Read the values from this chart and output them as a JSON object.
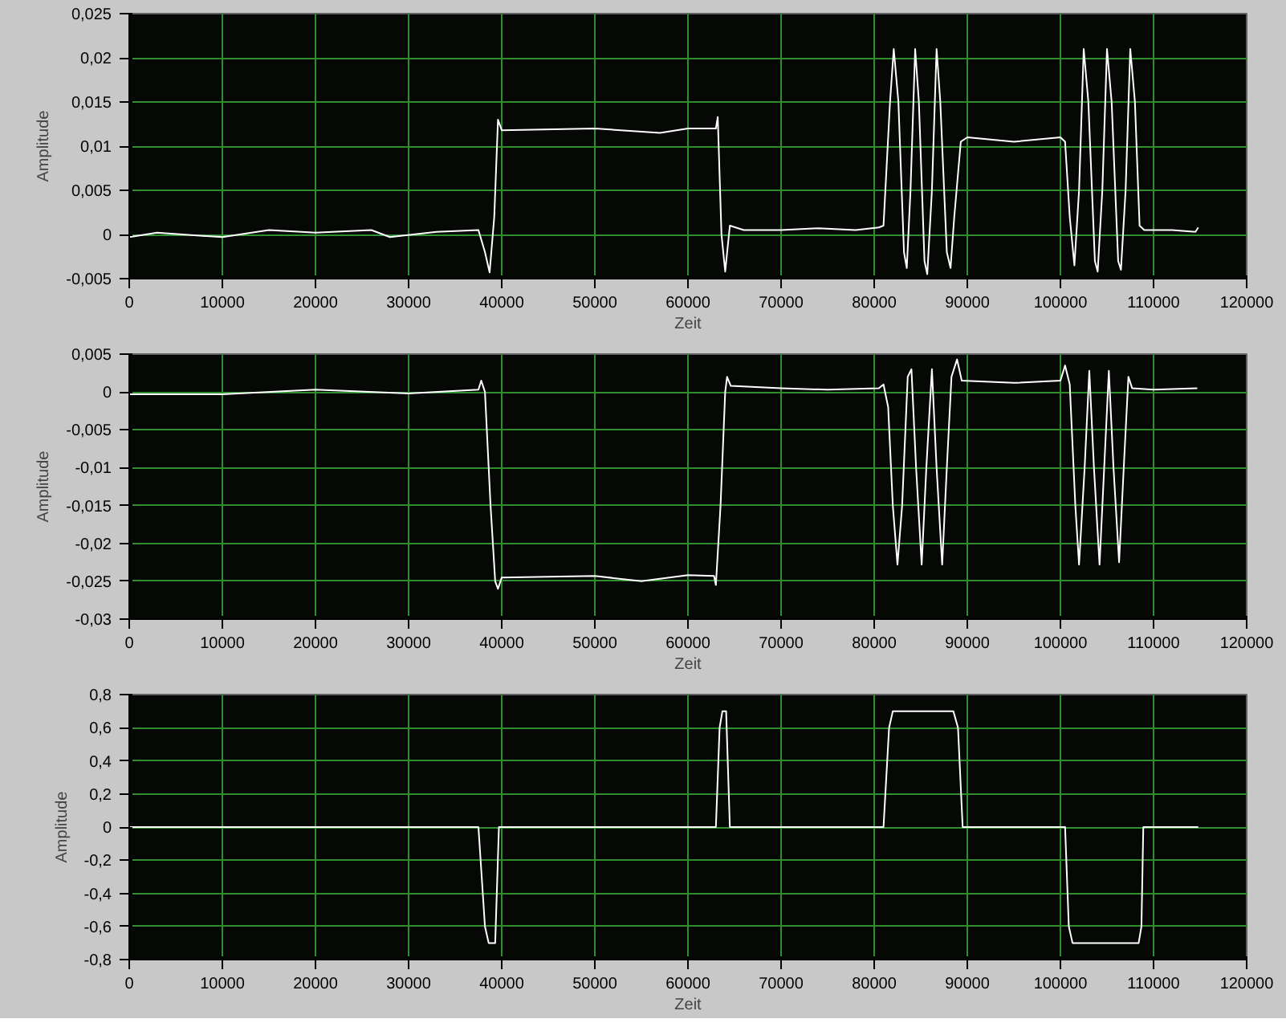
{
  "chart_data": [
    {
      "type": "line",
      "xlabel": "Zeit",
      "ylabel": "Amplitude",
      "grid": true,
      "xlim": [
        0,
        120000
      ],
      "ylim": [
        -0.005,
        0.025
      ],
      "xticks": [
        0,
        10000,
        20000,
        30000,
        40000,
        50000,
        60000,
        70000,
        80000,
        90000,
        100000,
        110000,
        120000
      ],
      "yticks": [
        {
          "value": -0.005,
          "label": "-0,005"
        },
        {
          "value": 0,
          "label": "0"
        },
        {
          "value": 0.005,
          "label": "0,005"
        },
        {
          "value": 0.01,
          "label": "0,01"
        },
        {
          "value": 0.015,
          "label": "0,015"
        },
        {
          "value": 0.02,
          "label": "0,02"
        },
        {
          "value": 0.025,
          "label": "0,025"
        }
      ],
      "x": [
        0,
        3000,
        10000,
        15000,
        20000,
        26000,
        28000,
        33000,
        37500,
        38200,
        38700,
        39200,
        39600,
        40000,
        50000,
        57000,
        60000,
        63000,
        63200,
        63600,
        64000,
        64500,
        66000,
        70000,
        74000,
        78000,
        80500,
        81000,
        81700,
        82100,
        82600,
        83200,
        83500,
        83900,
        84400,
        84800,
        85400,
        85700,
        86200,
        86700,
        87100,
        87800,
        88200,
        88600,
        89300,
        90000,
        95000,
        100000,
        100500,
        101000,
        101500,
        102000,
        102500,
        103000,
        103700,
        104000,
        104500,
        105000,
        105500,
        106200,
        106500,
        107000,
        107500,
        108000,
        108500,
        109000,
        112000,
        114500,
        114800
      ],
      "series": [
        {
          "color": "#ffffff",
          "values": [
            -0.0003,
            0.0002,
            -0.0003,
            0.0005,
            0.0002,
            0.0005,
            -0.0003,
            0.0003,
            0.0005,
            -0.002,
            -0.0043,
            0.002,
            0.013,
            0.0118,
            0.012,
            0.0115,
            0.012,
            0.012,
            0.0133,
            0.0,
            -0.0042,
            0.001,
            0.0005,
            0.0005,
            0.0007,
            0.0005,
            0.0008,
            0.001,
            0.015,
            0.021,
            0.015,
            -0.002,
            -0.0038,
            0.005,
            0.021,
            0.015,
            -0.003,
            -0.0045,
            0.005,
            0.021,
            0.015,
            -0.002,
            -0.0038,
            0.002,
            0.0105,
            0.011,
            0.0105,
            0.011,
            0.0105,
            0.002,
            -0.0035,
            0.005,
            0.021,
            0.015,
            -0.003,
            -0.0042,
            0.005,
            0.021,
            0.015,
            -0.003,
            -0.004,
            0.005,
            0.021,
            0.015,
            0.001,
            0.0005,
            0.0005,
            0.0003,
            0.0008
          ]
        }
      ]
    },
    {
      "type": "line",
      "xlabel": "Zeit",
      "ylabel": "Amplitude",
      "grid": true,
      "xlim": [
        0,
        120000
      ],
      "ylim": [
        -0.03,
        0.005
      ],
      "xticks": [
        0,
        10000,
        20000,
        30000,
        40000,
        50000,
        60000,
        70000,
        80000,
        90000,
        100000,
        110000,
        120000
      ],
      "yticks": [
        {
          "value": -0.03,
          "label": "-0,03"
        },
        {
          "value": -0.025,
          "label": "-0,025"
        },
        {
          "value": -0.02,
          "label": "-0,02"
        },
        {
          "value": -0.015,
          "label": "-0,015"
        },
        {
          "value": -0.01,
          "label": "-0,01"
        },
        {
          "value": -0.005,
          "label": "-0,005"
        },
        {
          "value": 0,
          "label": "0"
        },
        {
          "value": 0.005,
          "label": "0,005"
        }
      ],
      "x": [
        0,
        10000,
        20000,
        30000,
        37500,
        37800,
        38200,
        38800,
        39300,
        39600,
        40000,
        50000,
        55000,
        60000,
        62800,
        63000,
        63500,
        64000,
        64200,
        64600,
        70000,
        75000,
        80500,
        81000,
        81500,
        82000,
        82500,
        83000,
        83600,
        84000,
        84500,
        85100,
        85600,
        86200,
        86700,
        87300,
        87800,
        88300,
        88900,
        89400,
        95000,
        100000,
        100500,
        101000,
        101600,
        102000,
        102600,
        103100,
        103600,
        104200,
        104700,
        105200,
        105700,
        106300,
        106800,
        107300,
        107700,
        110000,
        114700
      ],
      "series": [
        {
          "color": "#ffffff",
          "values": [
            -0.0003,
            -0.0003,
            0.0003,
            -0.0002,
            0.0003,
            0.0015,
            0,
            -0.015,
            -0.025,
            -0.026,
            -0.0245,
            -0.0243,
            -0.025,
            -0.0242,
            -0.0243,
            -0.0255,
            -0.015,
            0,
            0.002,
            0.0008,
            0.0005,
            0.0003,
            0.0005,
            0.001,
            -0.002,
            -0.015,
            -0.0228,
            -0.015,
            0.002,
            0.003,
            -0.01,
            -0.0228,
            -0.01,
            0.003,
            -0.01,
            -0.0228,
            -0.01,
            0.002,
            0.0043,
            0.0015,
            0.0012,
            0.0015,
            0.0035,
            0.001,
            -0.015,
            -0.0228,
            -0.01,
            0.0028,
            -0.01,
            -0.0228,
            -0.01,
            0.0028,
            -0.01,
            -0.0225,
            -0.01,
            0.002,
            0.0005,
            0.0003,
            0.0005
          ]
        }
      ]
    },
    {
      "type": "line",
      "xlabel": "Zeit",
      "ylabel": "Amplitude",
      "grid": true,
      "xlim": [
        0,
        120000
      ],
      "ylim": [
        -0.8,
        0.8
      ],
      "xticks": [
        0,
        10000,
        20000,
        30000,
        40000,
        50000,
        60000,
        70000,
        80000,
        90000,
        100000,
        110000,
        120000
      ],
      "yticks": [
        {
          "value": -0.8,
          "label": "-0,8"
        },
        {
          "value": -0.6,
          "label": "-0,6"
        },
        {
          "value": -0.4,
          "label": "-0,4"
        },
        {
          "value": -0.2,
          "label": "-0,2"
        },
        {
          "value": 0,
          "label": "0"
        },
        {
          "value": 0.2,
          "label": "0,2"
        },
        {
          "value": 0.4,
          "label": "0,4"
        },
        {
          "value": 0.6,
          "label": "0,6"
        },
        {
          "value": 0.8,
          "label": "0,8"
        }
      ],
      "x": [
        0,
        37500,
        38200,
        38600,
        39300,
        39700,
        63000,
        63400,
        63700,
        64100,
        64500,
        81000,
        81600,
        82000,
        88500,
        89000,
        89500,
        100500,
        100900,
        101300,
        108400,
        108700,
        108900,
        114800
      ],
      "series": [
        {
          "color": "#ffffff",
          "values": [
            0,
            0,
            -0.6,
            -0.7,
            -0.7,
            0,
            0,
            0.6,
            0.7,
            0.7,
            0,
            0,
            0.6,
            0.7,
            0.7,
            0.6,
            0,
            0,
            -0.6,
            -0.7,
            -0.7,
            -0.6,
            0,
            0
          ]
        }
      ]
    }
  ]
}
